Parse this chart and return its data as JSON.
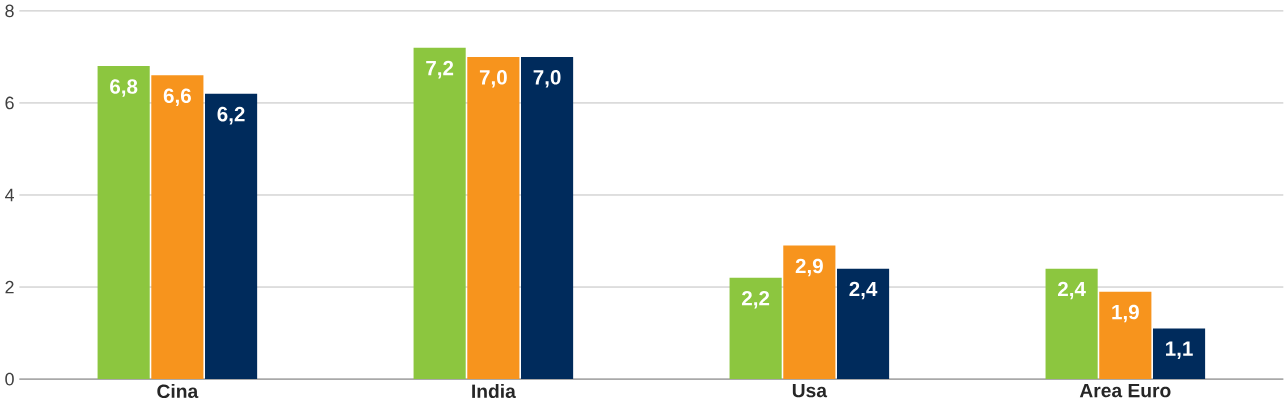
{
  "chart_data": {
    "type": "bar",
    "categories": [
      "Cina",
      "India",
      "Usa",
      "Area Euro"
    ],
    "series": [
      {
        "color": "#8cc63f",
        "values": [
          6.8,
          7.2,
          2.2,
          2.4
        ],
        "value_labels": [
          "6,8",
          "7,2",
          "2,2",
          "2,4"
        ]
      },
      {
        "color": "#f7941d",
        "values": [
          6.6,
          7.0,
          2.9,
          1.9
        ],
        "value_labels": [
          "6,6",
          "7,0",
          "2,9",
          "1,9"
        ]
      },
      {
        "color": "#002b5c",
        "values": [
          6.2,
          7.0,
          2.4,
          1.1
        ],
        "value_labels": [
          "6,2",
          "7,0",
          "2,4",
          "1,1"
        ]
      }
    ],
    "ylim": [
      0,
      8
    ],
    "yticks": [
      0,
      2,
      4,
      6,
      8
    ],
    "grid": "y"
  }
}
